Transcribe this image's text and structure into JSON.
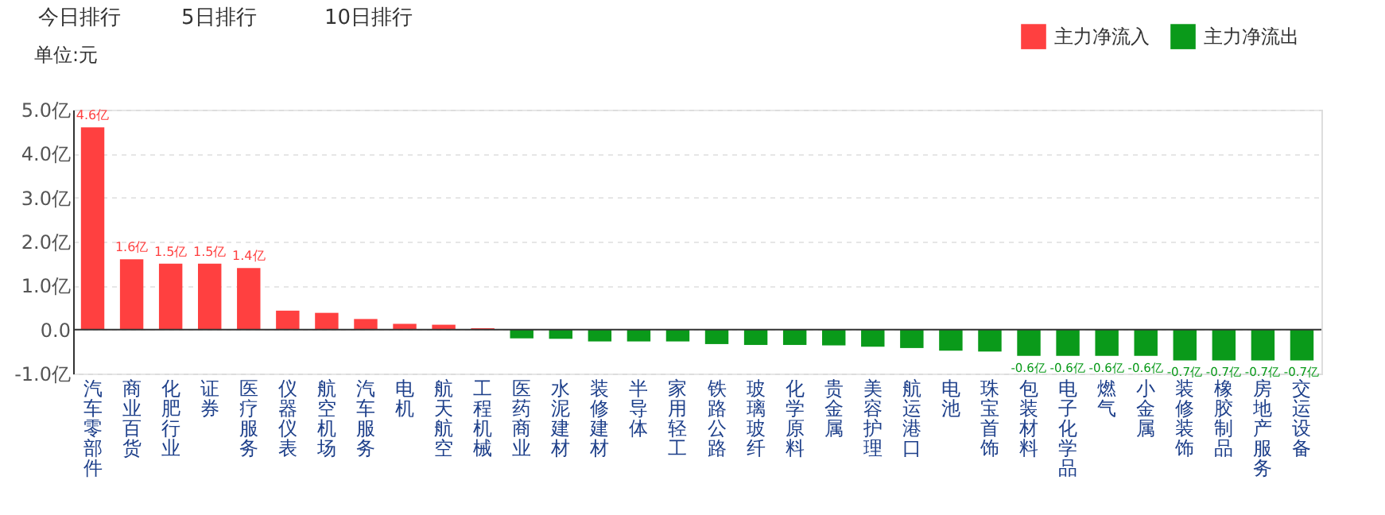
{
  "chart_data": {
    "type": "bar",
    "ylabel": "单位:元",
    "annotations": [
      "今日排行",
      "5日排行",
      "10日排行"
    ],
    "categories": [
      "汽车零部件",
      "商业百货",
      "化肥行业",
      "证券",
      "医疗服务",
      "仪器仪表",
      "航空机场",
      "汽车服务",
      "电机",
      "航天航空",
      "工程机械",
      "医药商业",
      "水泥建材",
      "装修建材",
      "半导体",
      "家用轻工",
      "铁路公路",
      "玻璃玻纤",
      "化学原料",
      "贵金属",
      "美容护理",
      "航运港口",
      "电池",
      "珠宝首饰",
      "包装材料",
      "电子化学品",
      "燃气",
      "小金属",
      "装修装饰",
      "橡胶制品",
      "房地产服务",
      "交运设备"
    ],
    "series": [
      {
        "name": "主力净流入",
        "color": "#ff4040",
        "values": [
          4.6,
          1.6,
          1.5,
          1.5,
          1.4,
          0.43,
          0.38,
          0.24,
          0.13,
          0.11,
          0.03,
          null,
          null,
          null,
          null,
          null,
          null,
          null,
          null,
          null,
          null,
          null,
          null,
          null,
          null,
          null,
          null,
          null,
          null,
          null,
          null,
          null
        ],
        "value_labels": [
          "4.6亿",
          "1.6亿",
          "1.5亿",
          "1.5亿",
          "1.4亿",
          null,
          null,
          null,
          null,
          null,
          null,
          null,
          null,
          null,
          null,
          null,
          null,
          null,
          null,
          null,
          null,
          null,
          null,
          null,
          null,
          null,
          null,
          null,
          null,
          null,
          null,
          null
        ]
      },
      {
        "name": "主力净流出",
        "color": "#0a9a1a",
        "values": [
          null,
          null,
          null,
          null,
          null,
          null,
          null,
          null,
          null,
          null,
          null,
          -0.2,
          -0.21,
          -0.27,
          -0.27,
          -0.27,
          -0.33,
          -0.35,
          -0.35,
          -0.36,
          -0.39,
          -0.42,
          -0.48,
          -0.5,
          -0.6,
          -0.6,
          -0.6,
          -0.6,
          -0.7,
          -0.7,
          -0.7,
          -0.7
        ],
        "value_labels": [
          null,
          null,
          null,
          null,
          null,
          null,
          null,
          null,
          null,
          null,
          null,
          null,
          null,
          null,
          null,
          null,
          null,
          null,
          null,
          null,
          null,
          null,
          null,
          null,
          "-0.6亿",
          "-0.6亿",
          "-0.6亿",
          "-0.6亿",
          "-0.7亿",
          "-0.7亿",
          "-0.7亿",
          "-0.7亿"
        ]
      }
    ],
    "ylim": [
      -1,
      5
    ],
    "yticks": [
      {
        "value": -1,
        "label": "-1.0亿"
      },
      {
        "value": 0,
        "label": "0.0"
      },
      {
        "value": 1,
        "label": "1.0亿"
      },
      {
        "value": 2,
        "label": "2.0亿"
      },
      {
        "value": 3,
        "label": "3.0亿"
      },
      {
        "value": 4,
        "label": "4.0亿"
      },
      {
        "value": 5,
        "label": "5.0亿"
      }
    ],
    "grid": "y",
    "legend": "top right"
  }
}
